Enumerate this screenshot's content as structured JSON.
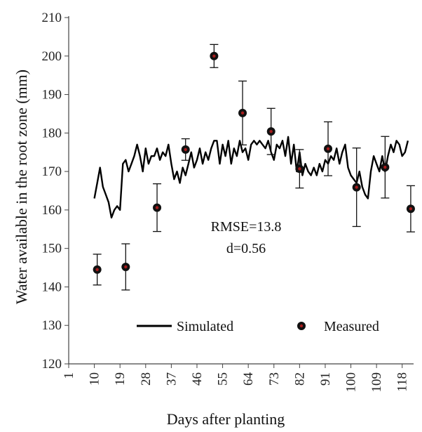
{
  "chart_data": {
    "type": "line",
    "xlabel": "Days after planting",
    "ylabel": "Water available  in the root zone  (mm)",
    "xlim": [
      1,
      122
    ],
    "ylim": [
      120,
      210
    ],
    "yticks": [
      120,
      130,
      140,
      150,
      160,
      170,
      180,
      190,
      200,
      210
    ],
    "xticks": [
      1,
      10,
      19,
      28,
      37,
      46,
      55,
      64,
      73,
      82,
      91,
      100,
      109,
      118
    ],
    "grid": false,
    "legend_position": "lower-right",
    "annotations": [
      "RMSE=13.8",
      "d=0.56"
    ],
    "series": [
      {
        "name": "Simulated",
        "style": "line",
        "color": "#000000",
        "x": [
          10,
          11,
          12,
          13,
          14,
          15,
          16,
          17,
          18,
          19,
          20,
          21,
          22,
          23,
          24,
          25,
          26,
          27,
          28,
          29,
          30,
          31,
          32,
          33,
          34,
          35,
          36,
          37,
          38,
          39,
          40,
          41,
          42,
          43,
          44,
          45,
          46,
          47,
          48,
          49,
          50,
          51,
          52,
          53,
          54,
          55,
          56,
          57,
          58,
          59,
          60,
          61,
          62,
          63,
          64,
          65,
          66,
          67,
          68,
          69,
          70,
          71,
          72,
          73,
          74,
          75,
          76,
          77,
          78,
          79,
          80,
          81,
          82,
          83,
          84,
          85,
          86,
          87,
          88,
          89,
          90,
          91,
          92,
          93,
          94,
          95,
          96,
          97,
          98,
          99,
          100,
          101,
          102,
          103,
          104,
          105,
          106,
          107,
          108,
          109,
          110,
          111,
          112,
          113,
          114,
          115,
          116,
          117,
          118,
          119,
          120
        ],
        "y": [
          163,
          167,
          171,
          166,
          164,
          162,
          158,
          160,
          161,
          160,
          172,
          173,
          170,
          172,
          174,
          177,
          174,
          170,
          176,
          172,
          174,
          174,
          176,
          173,
          175,
          174,
          177,
          172,
          168,
          170,
          167,
          171,
          169,
          172,
          175,
          171,
          173,
          176,
          172,
          175,
          173,
          176,
          178,
          178,
          172,
          177,
          174,
          178,
          172,
          176,
          174,
          178,
          175,
          176,
          173,
          177,
          178,
          177,
          178,
          177,
          176,
          178,
          175,
          173,
          177,
          176,
          178,
          174,
          179,
          172,
          177,
          170,
          175,
          169,
          172,
          170,
          169,
          171,
          169,
          172,
          170,
          173,
          172,
          174,
          173,
          176,
          172,
          175,
          177,
          171,
          169,
          168,
          167,
          170,
          166,
          164,
          163,
          170,
          174,
          172,
          170,
          174,
          170,
          174,
          177,
          175,
          178,
          177,
          174,
          175,
          178
        ]
      },
      {
        "name": "Measured",
        "style": "points",
        "color": "#8b1a1a",
        "x": [
          11,
          21,
          32,
          42,
          52,
          62,
          72,
          82,
          92,
          102,
          112,
          121
        ],
        "y": [
          144.5,
          145.2,
          160.6,
          175.7,
          200.0,
          185.2,
          180.4,
          170.7,
          175.9,
          165.9,
          171.1,
          160.3
        ],
        "error": [
          4.0,
          6.0,
          6.2,
          2.8,
          3.0,
          8.3,
          6.0,
          5.0,
          7.0,
          10.2,
          8.0,
          6.0
        ]
      }
    ]
  }
}
